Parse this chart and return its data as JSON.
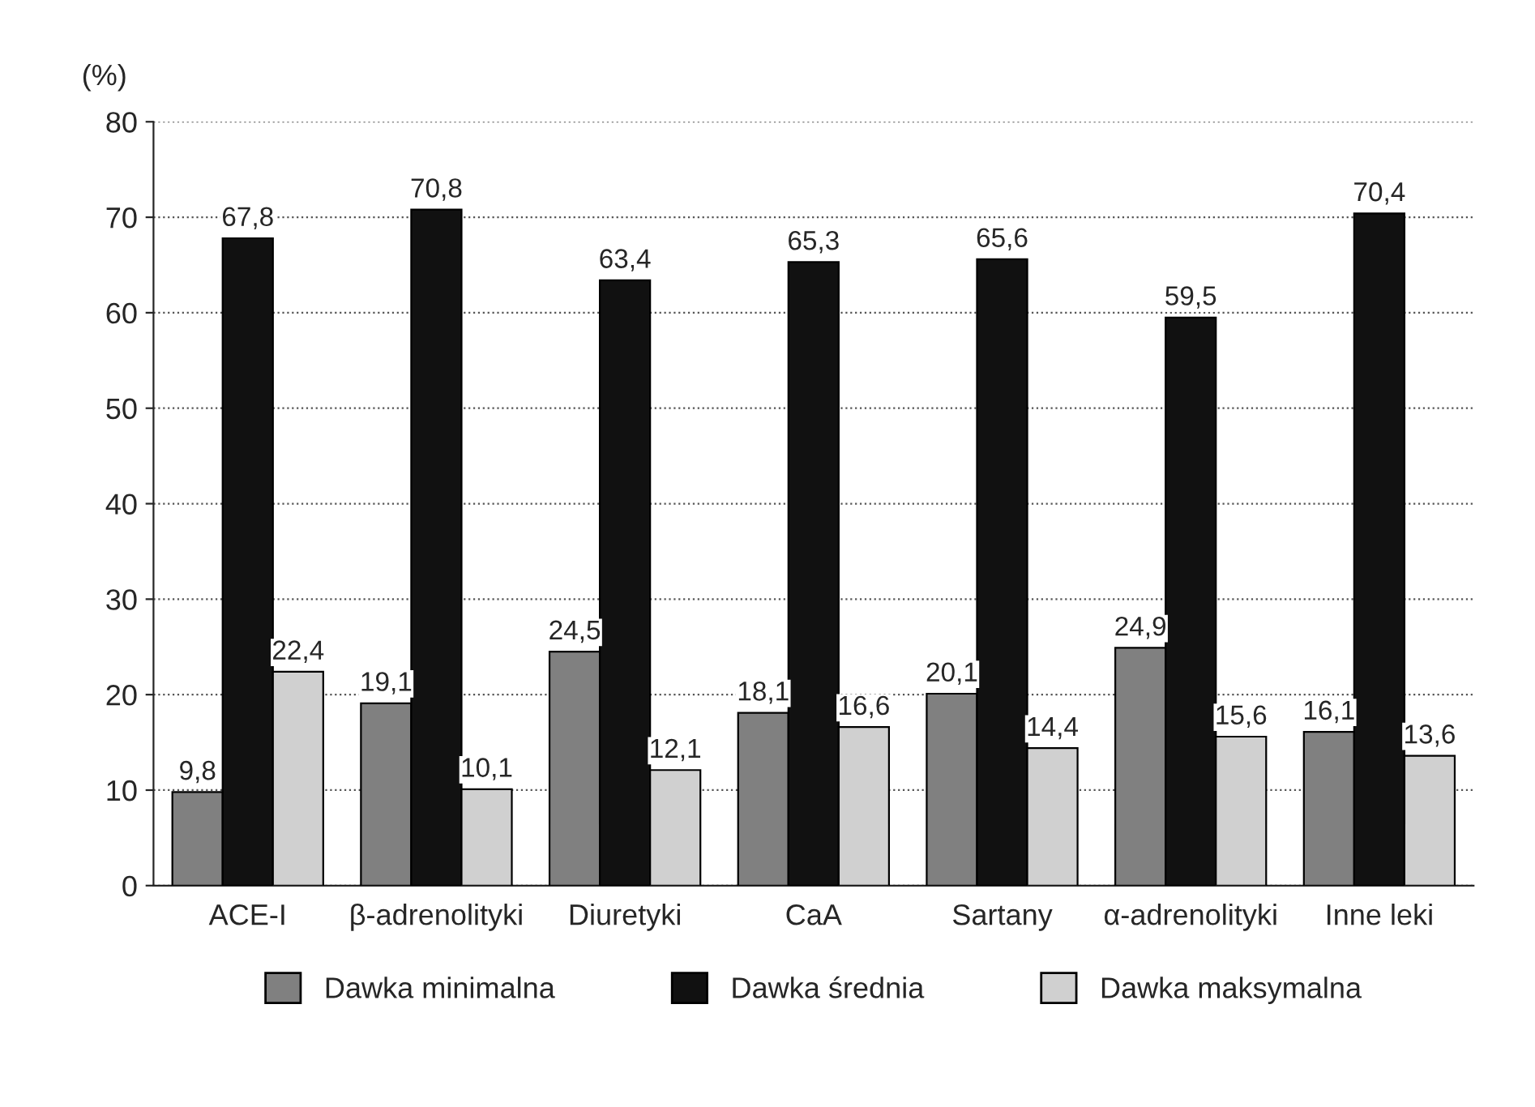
{
  "chart_data": {
    "type": "bar",
    "ylabel": "(%)",
    "categories": [
      "ACE-I",
      "β-adrenolityki",
      "Diuretyki",
      "CaA",
      "Sartany",
      "α-adrenolityki",
      "Inne leki"
    ],
    "series": [
      {
        "name": "Dawka minimalna",
        "color": "#808080",
        "values": [
          9.8,
          19.1,
          24.5,
          18.1,
          20.1,
          24.9,
          16.1
        ]
      },
      {
        "name": "Dawka średnia",
        "color": "#111111",
        "values": [
          67.8,
          70.8,
          63.4,
          65.3,
          65.6,
          59.5,
          70.4
        ]
      },
      {
        "name": "Dawka maksymalna",
        "color": "#d0d0d0",
        "values": [
          22.4,
          10.1,
          12.1,
          16.6,
          14.4,
          15.6,
          13.6
        ]
      }
    ],
    "value_labels": [
      [
        "9,8",
        "19,1",
        "24,5",
        "18,1",
        "20,1",
        "24,9",
        "16,1"
      ],
      [
        "67,8",
        "70,8",
        "63,4",
        "65,3",
        "65,6",
        "59,5",
        "70,4"
      ],
      [
        "22,4",
        "10,1",
        "12,1",
        "16,6",
        "14,4",
        "15,6",
        "13,6"
      ]
    ],
    "ylim": [
      0,
      80
    ],
    "yticks": [
      0,
      10,
      20,
      30,
      40,
      50,
      60,
      70,
      80
    ],
    "grid": "y",
    "legend": "bottom"
  }
}
